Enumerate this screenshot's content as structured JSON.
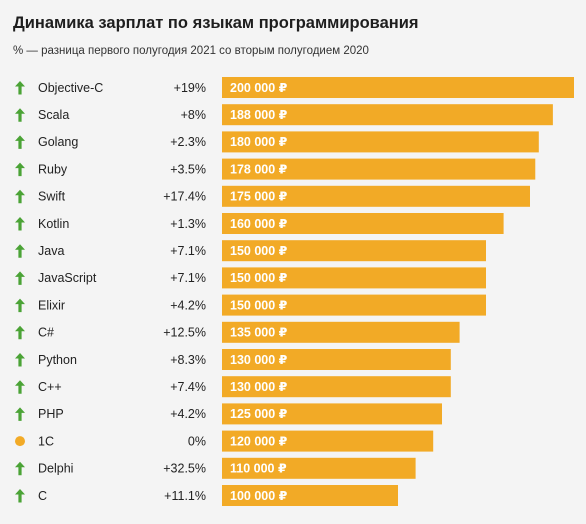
{
  "title": "Динамика зарплат по языкам программирования",
  "subtitle": "% — разница первого полугодия 2021 со вторым полугодием 2020",
  "colors": {
    "bar": "#f2aa26",
    "bar_label": "#ffffff",
    "up_arrow": "#4ba336",
    "neutral_dot": "#f2aa26",
    "text": "#222222"
  },
  "chart_data": {
    "type": "bar",
    "orientation": "horizontal",
    "categories": [
      "Objective-C",
      "Scala",
      "Golang",
      "Ruby",
      "Swift",
      "Kotlin",
      "Java",
      "JavaScript",
      "Elixir",
      "C#",
      "Python",
      "C++",
      "PHP",
      "1С",
      "Delphi",
      "C"
    ],
    "values": [
      200000,
      188000,
      180000,
      178000,
      175000,
      160000,
      150000,
      150000,
      150000,
      135000,
      130000,
      130000,
      125000,
      120000,
      110000,
      100000
    ],
    "value_labels": [
      "200 000 ₽",
      "188 000 ₽",
      "180 000 ₽",
      "178 000 ₽",
      "175 000 ₽",
      "160 000 ₽",
      "150 000 ₽",
      "150 000 ₽",
      "150 000 ₽",
      "135 000 ₽",
      "130 000 ₽",
      "130 000 ₽",
      "125 000 ₽",
      "120 000 ₽",
      "110 000 ₽",
      "100 000 ₽"
    ],
    "changes": [
      "+19%",
      "+8%",
      "+2.3%",
      "+3.5%",
      "+17.4%",
      "+1.3%",
      "+7.1%",
      "+7.1%",
      "+4.2%",
      "+12.5%",
      "+8.3%",
      "+7.4%",
      "+4.2%",
      "0%",
      "+32.5%",
      "+11.1%"
    ],
    "trend_icons": [
      "up-arrow-icon",
      "up-arrow-icon",
      "up-arrow-icon",
      "up-arrow-icon",
      "up-arrow-icon",
      "up-arrow-icon",
      "up-arrow-icon",
      "up-arrow-icon",
      "up-arrow-icon",
      "up-arrow-icon",
      "up-arrow-icon",
      "up-arrow-icon",
      "up-arrow-icon",
      "neutral-dot-icon",
      "up-arrow-icon",
      "up-arrow-icon"
    ],
    "grid": false
  }
}
